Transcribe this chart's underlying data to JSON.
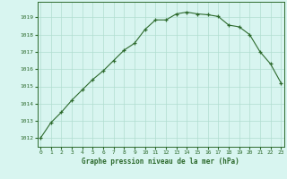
{
  "x": [
    0,
    1,
    2,
    3,
    4,
    5,
    6,
    7,
    8,
    9,
    10,
    11,
    12,
    13,
    14,
    15,
    16,
    17,
    18,
    19,
    20,
    21,
    22,
    23
  ],
  "y": [
    1012.0,
    1012.9,
    1013.5,
    1014.2,
    1014.8,
    1015.4,
    1015.9,
    1016.5,
    1017.1,
    1017.5,
    1018.3,
    1018.85,
    1018.85,
    1019.2,
    1019.3,
    1019.2,
    1019.15,
    1019.05,
    1018.55,
    1018.45,
    1018.0,
    1017.0,
    1016.3,
    1015.2
  ],
  "line_color": "#2d6a2d",
  "marker_color": "#2d6a2d",
  "background_color": "#d8f5f0",
  "grid_color": "#b0ddd0",
  "xlabel": "Graphe pression niveau de la mer (hPa)",
  "xlabel_color": "#2d6a2d",
  "ylabel_ticks": [
    1012,
    1013,
    1014,
    1015,
    1016,
    1017,
    1018,
    1019
  ],
  "xlim": [
    -0.3,
    23.3
  ],
  "ylim": [
    1011.5,
    1019.9
  ],
  "tick_color": "#2d6a2d",
  "spine_color": "#2d6a2d"
}
